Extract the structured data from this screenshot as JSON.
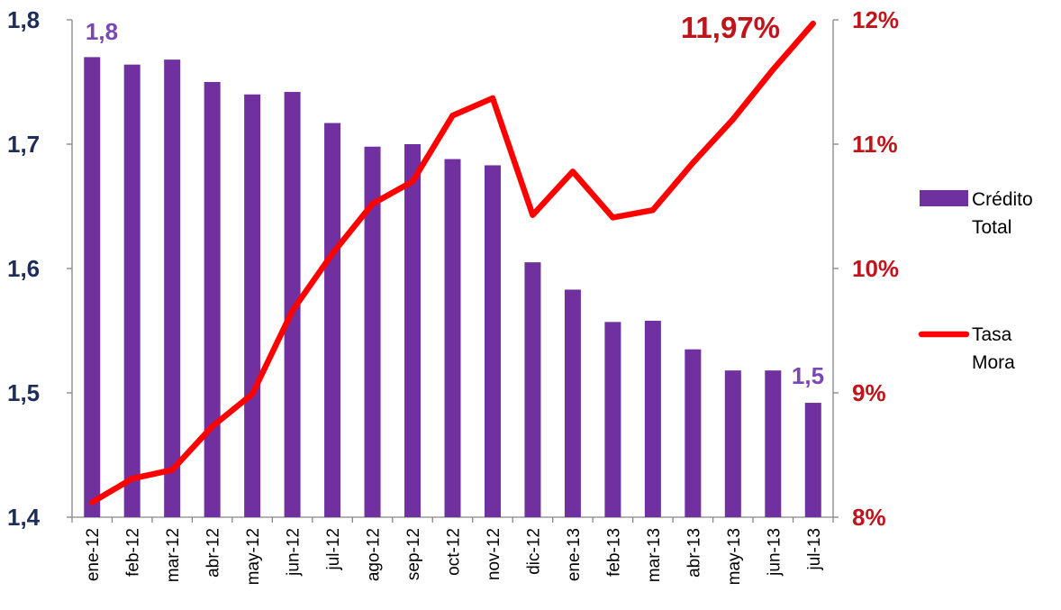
{
  "chart_data": {
    "type": "bar",
    "categories": [
      "ene-12",
      "feb-12",
      "mar-12",
      "abr-12",
      "may-12",
      "jun-12",
      "jul-12",
      "ago-12",
      "sep-12",
      "oct-12",
      "nov-12",
      "dic-12",
      "ene-13",
      "feb-13",
      "mar-13",
      "abr-13",
      "may-13",
      "jun-13",
      "jul-13"
    ],
    "series": [
      {
        "name": "Crédito Total",
        "type": "bar",
        "axis": "left",
        "color": "#7030a0",
        "values": [
          1.77,
          1.764,
          1.768,
          1.75,
          1.74,
          1.742,
          1.717,
          1.698,
          1.7,
          1.688,
          1.683,
          1.605,
          1.583,
          1.557,
          1.558,
          1.535,
          1.518,
          1.518,
          1.492
        ]
      },
      {
        "name": "Tasa Mora",
        "type": "line",
        "axis": "right",
        "color": "#ff0000",
        "values": [
          8.12,
          8.31,
          8.38,
          8.73,
          8.99,
          9.66,
          10.12,
          10.52,
          10.7,
          11.23,
          11.37,
          10.43,
          10.78,
          10.41,
          10.47,
          10.85,
          11.2,
          11.6,
          11.97
        ]
      }
    ],
    "y_left": {
      "min": 1.4,
      "max": 1.8,
      "ticks": [
        "1,4",
        "1,5",
        "1,6",
        "1,7",
        "1,8"
      ],
      "color": "#1f2d5a"
    },
    "y_right": {
      "min": 8,
      "max": 12,
      "ticks": [
        "8%",
        "9%",
        "10%",
        "11%",
        "12%"
      ],
      "color": "#c0141b"
    },
    "annotations": {
      "first_bar": "1,8",
      "last_bar": "1,5",
      "last_line": "11,97%"
    },
    "legend": {
      "placement": "right",
      "items": [
        {
          "lines": [
            "Crédito",
            "Total"
          ],
          "symbol": "bar",
          "color": "#7030a0"
        },
        {
          "lines": [
            "Tasa",
            "Mora"
          ],
          "symbol": "line",
          "color": "#ff0000"
        }
      ]
    },
    "grid": false,
    "title": "",
    "xlabel": "",
    "ylabel": ""
  }
}
